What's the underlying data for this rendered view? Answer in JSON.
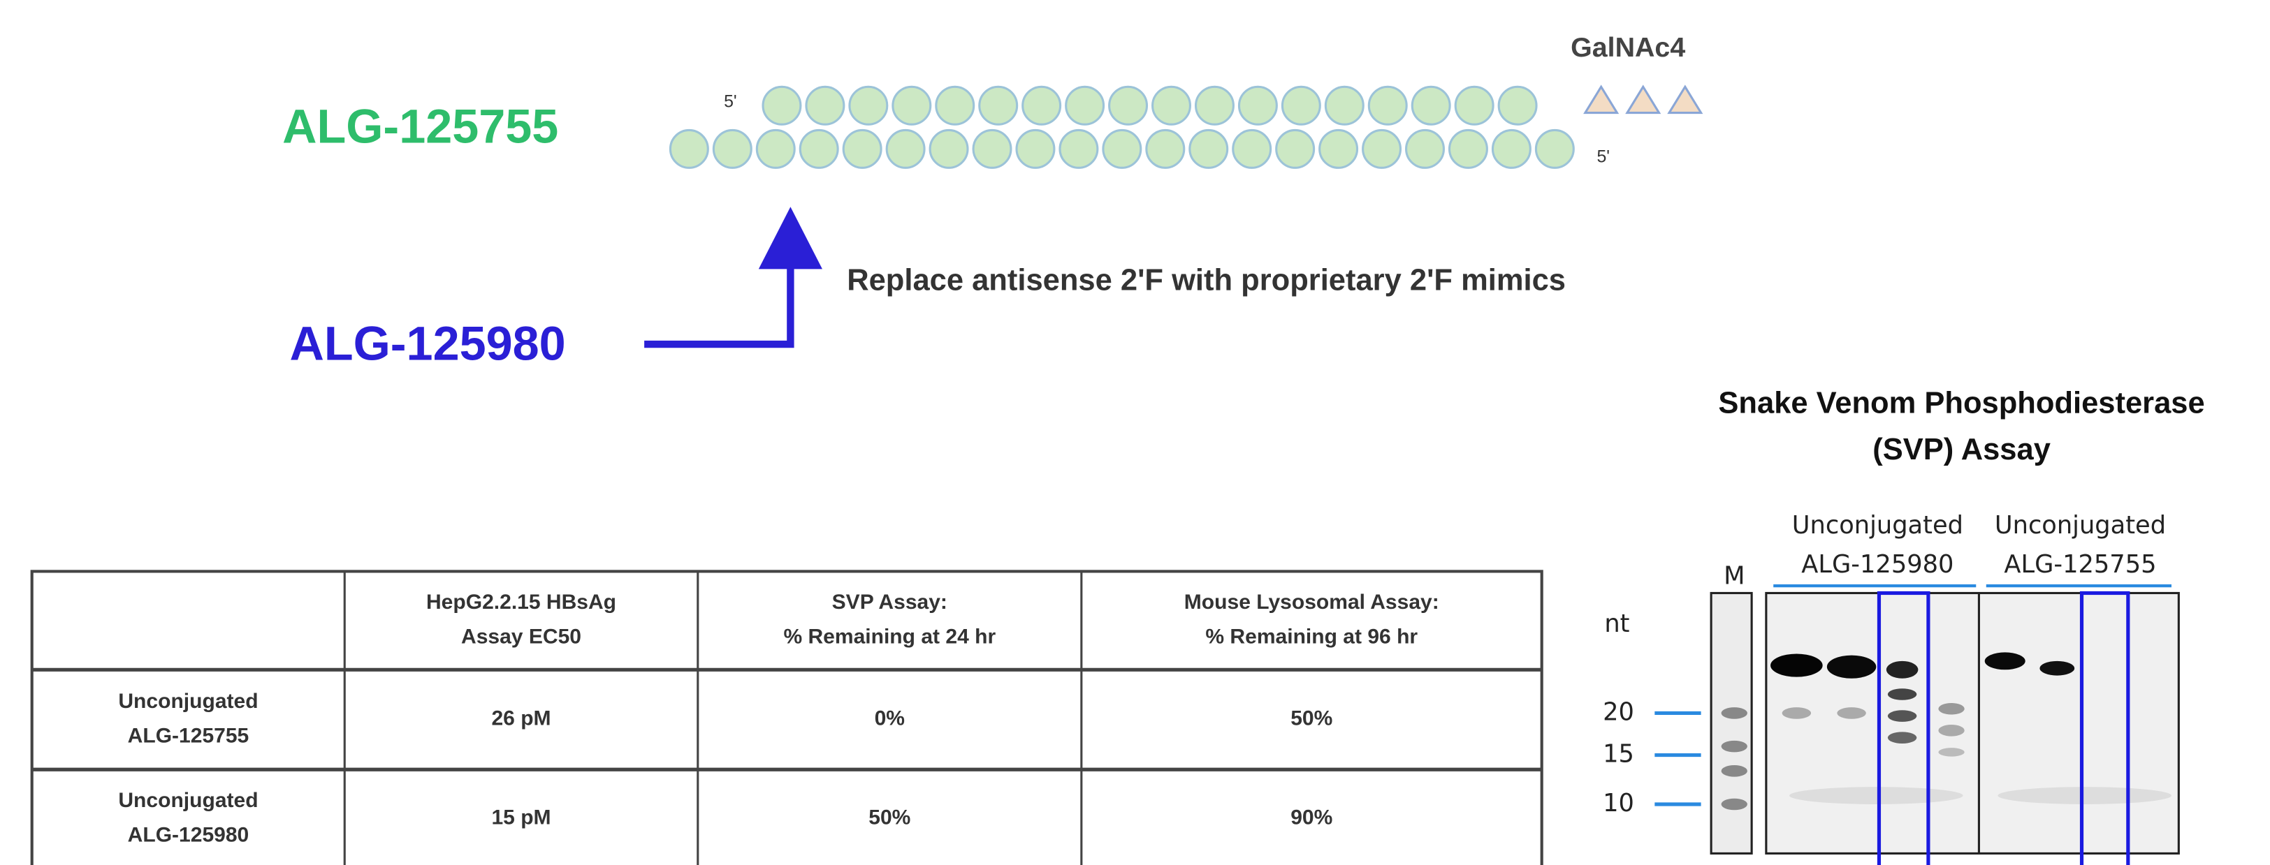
{
  "structure": {
    "compound_a": "ALG-125755",
    "compound_b": "ALG-125980",
    "five_prime_top": "5'",
    "five_prime_bottom": "5'",
    "ligand": "GalNAc4",
    "modification": "Replace  antisense  2'F  with  proprietary  2'F  mimics"
  },
  "gel": {
    "title": [
      "Snake Venom Phosphodiesterase",
      "(SVP) Assay"
    ],
    "marker_lane": "M",
    "unit": "nt",
    "groups": [
      [
        "Unconjugated",
        "ALG-125980"
      ],
      [
        "Unconjugated",
        "ALG-125755"
      ]
    ],
    "size_markers": [
      "20",
      "15",
      "10"
    ]
  },
  "table": {
    "header": [
      [
        "HepG2.2.15 HBsAg",
        "Assay EC50"
      ],
      [
        "SVP Assay:",
        "% Remaining at 24 hr"
      ],
      [
        "Mouse Lysosomal Assay:",
        "% Remaining at 96 hr"
      ]
    ],
    "rows": [
      {
        "compound": [
          "Unconjugated",
          "ALG-125755"
        ],
        "values": [
          "26 pM",
          "0%",
          "50%"
        ]
      },
      {
        "compound": [
          "Unconjugated",
          "ALG-125980"
        ],
        "values": [
          "15 pM",
          "50%",
          "90%"
        ]
      }
    ]
  }
}
